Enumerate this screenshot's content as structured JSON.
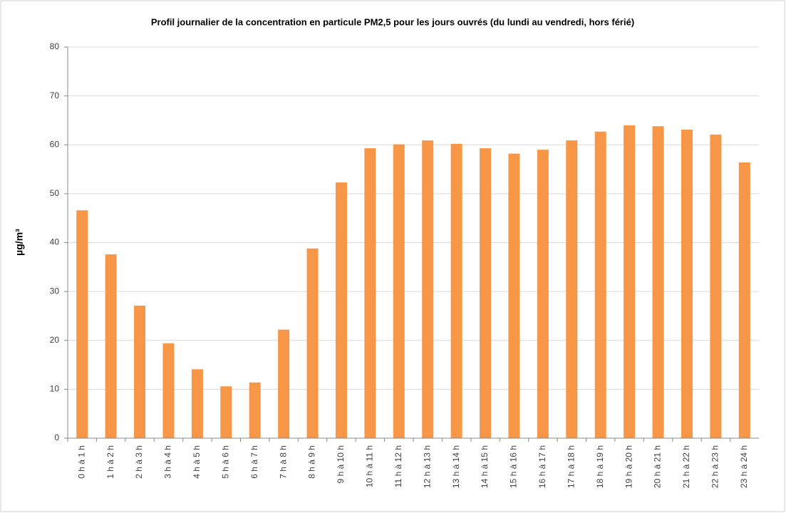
{
  "chart_data": {
    "type": "bar",
    "title": "Profil journalier de la  concentration en particule PM2,5 pour les jours ouvrés (du lundi au vendredi, hors férié)",
    "y_label": "µg/m³",
    "categories": [
      "0 h à 1 h",
      "1 h à 2 h",
      "2 h à 3 h",
      "3 h à 4 h",
      "4 h à 5 h",
      "5 h à 6 h",
      "6 h à 7 h",
      "7 h à 8 h",
      "8 h à 9 h",
      "9 h à 10 h",
      "10 h à 11 h",
      "11 h à 12 h",
      "12 h à 13 h",
      "13 h à 14 h",
      "14 h à 15 h",
      "15 h à 16 h",
      "16 h à 17 h",
      "17 h à 18 h",
      "18 h à 19 h",
      "19 h à 20 h",
      "20 h à 21 h",
      "21 h à 22 h",
      "22 h à 23 h",
      "23 h à 24 h"
    ],
    "values": [
      46.6,
      37.6,
      27.1,
      19.4,
      14.1,
      10.6,
      11.4,
      22.2,
      38.8,
      52.3,
      59.3,
      60.1,
      60.9,
      60.2,
      59.3,
      58.2,
      59.0,
      60.9,
      62.7,
      64.0,
      63.8,
      63.1,
      62.1,
      56.4
    ],
    "color": "#f79646",
    "ylim": [
      0,
      80
    ],
    "yticks": [
      0,
      10,
      20,
      30,
      40,
      50,
      60,
      70,
      80
    ],
    "grid": true
  }
}
